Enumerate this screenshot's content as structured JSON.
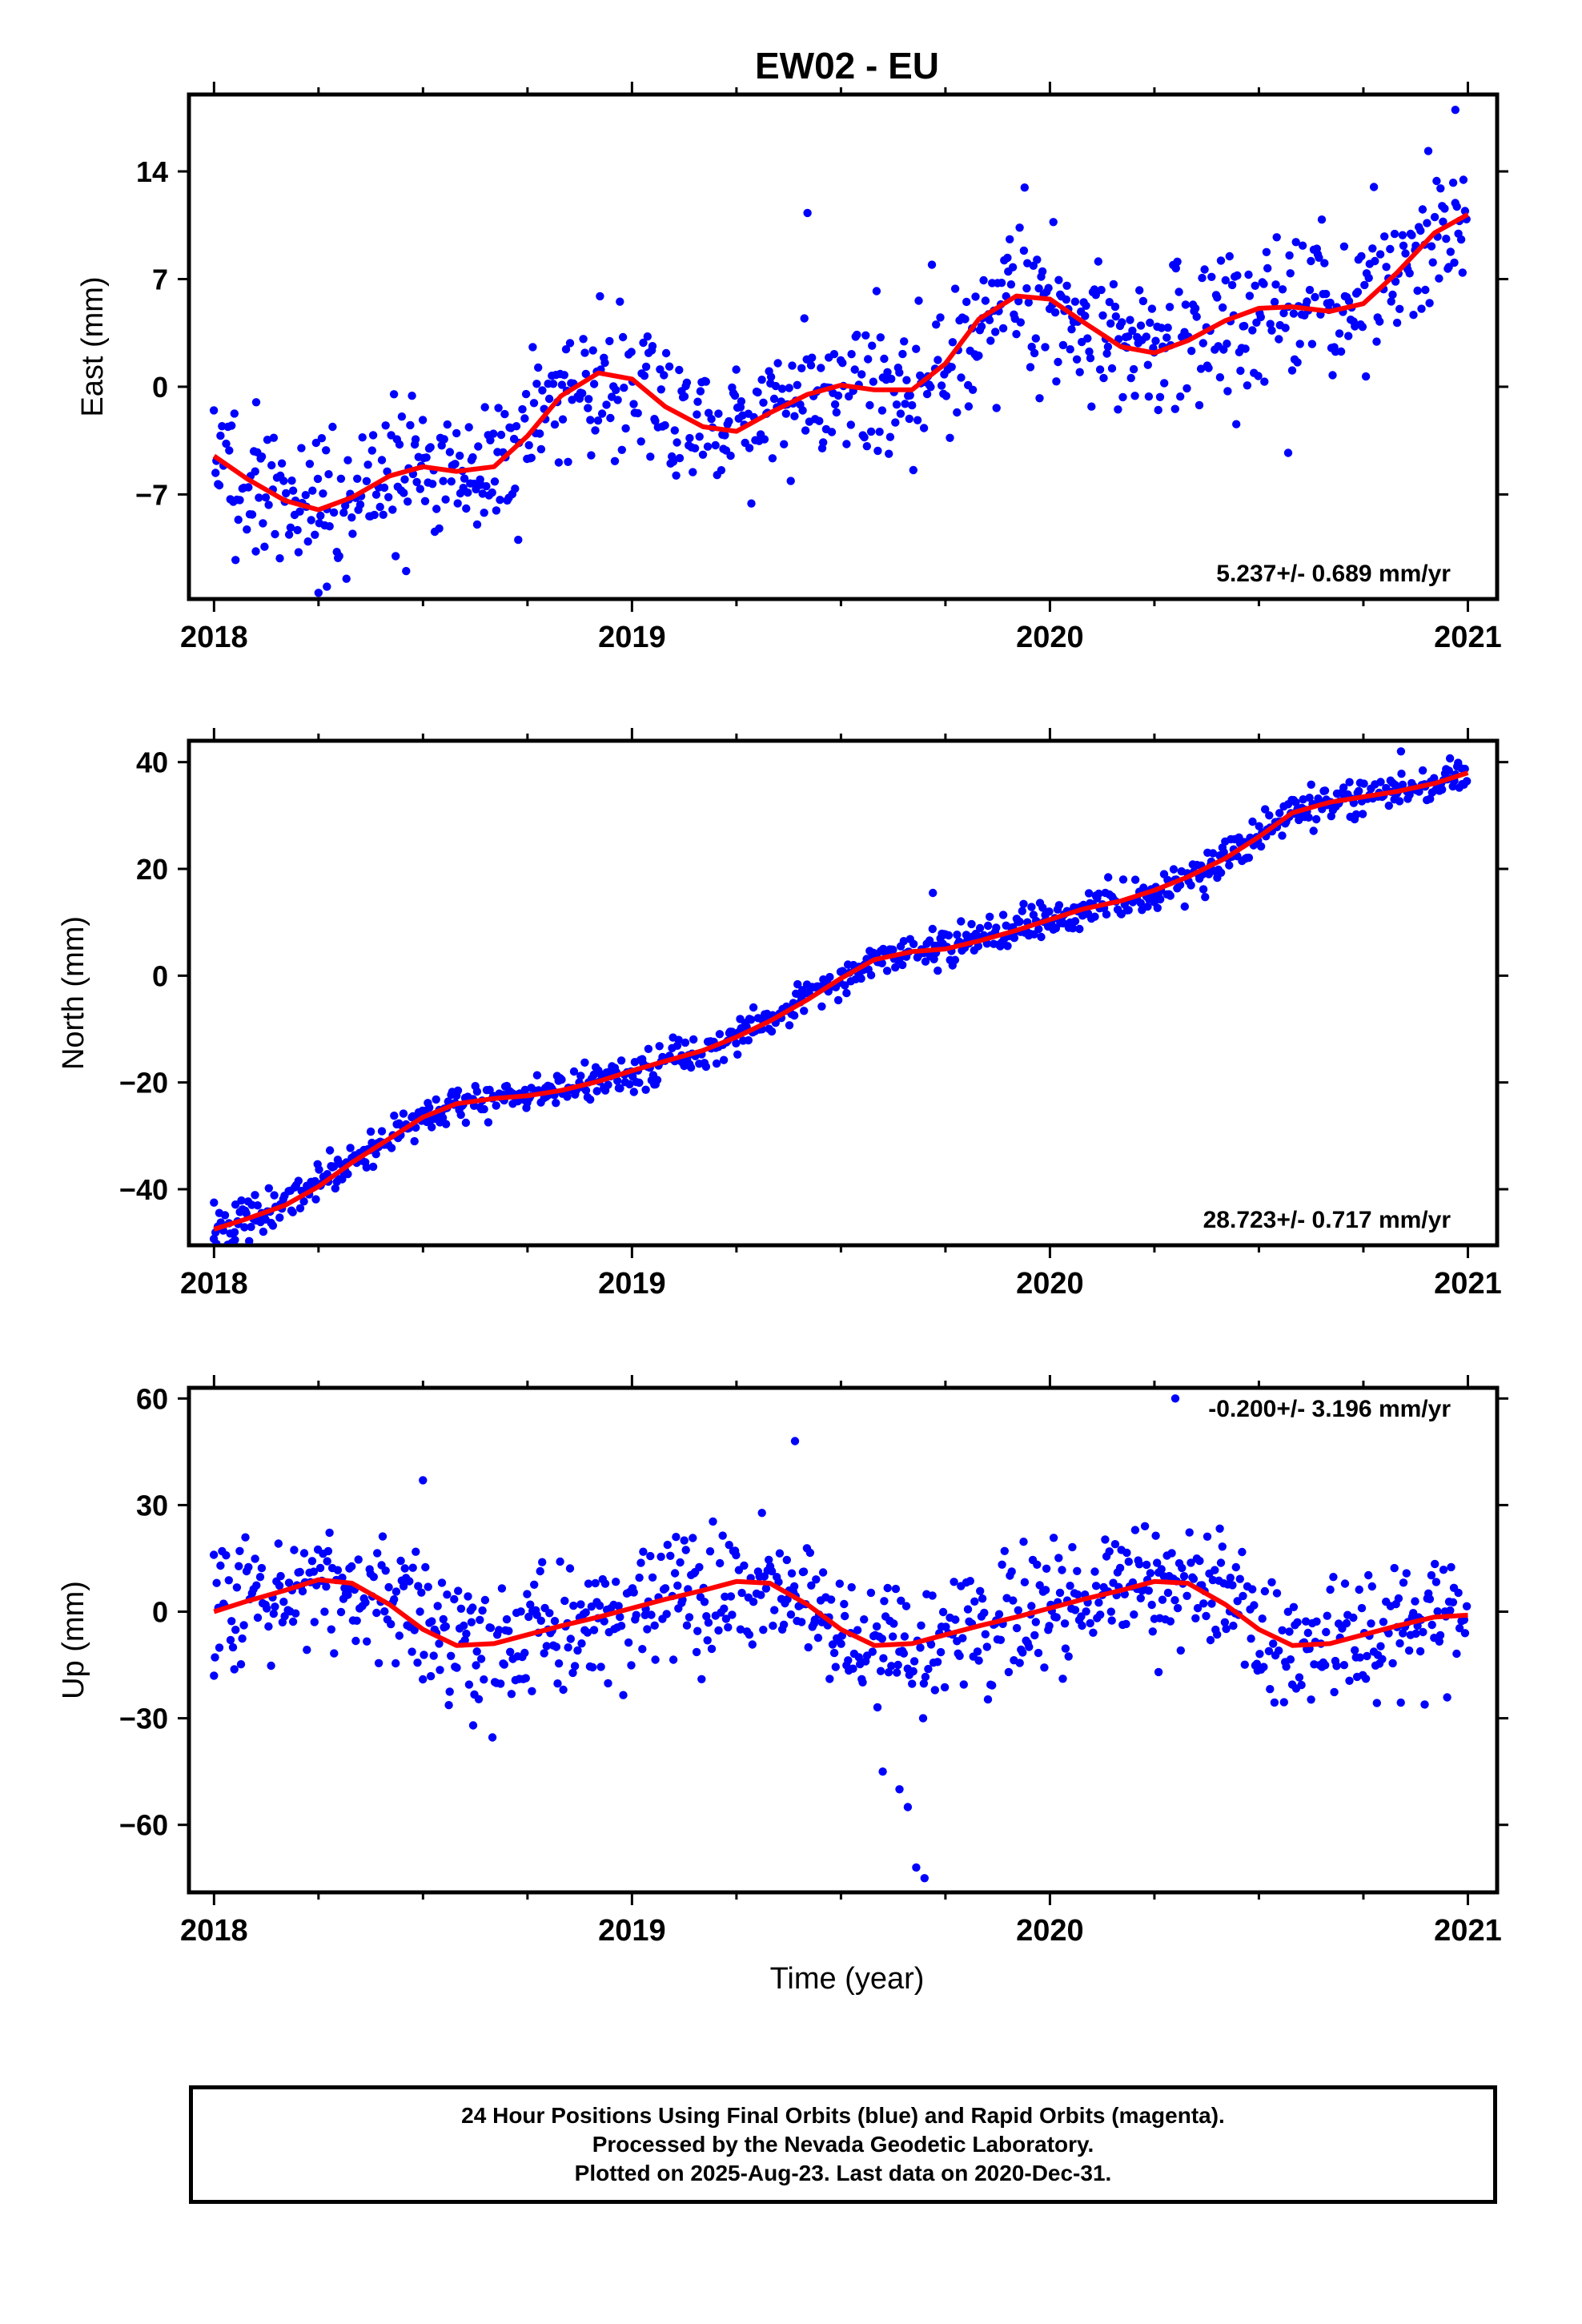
{
  "title": "EW02 - EU",
  "xlabel": "Time (year)",
  "footer": {
    "line1": "24 Hour Positions Using Final Orbits (blue) and Rapid Orbits (magenta).",
    "line2": "Processed by the Nevada Geodetic Laboratory.",
    "line3": "Plotted on 2025-Aug-23. Last data on 2020-Dec-31."
  },
  "colors": {
    "points": "#0000ff",
    "fit": "#ff0000",
    "axes": "#000000"
  },
  "chart_data": [
    {
      "type": "scatter",
      "ylabel": "East (mm)",
      "rate": "5.237+/- 0.689 mm/yr",
      "xlim": [
        2017.94,
        2021.07
      ],
      "ylim": [
        -13.8,
        19.0
      ],
      "yticks": [
        -7,
        0,
        7,
        14
      ],
      "xticks": [
        2018,
        2019,
        2020,
        2021
      ],
      "fit": {
        "x": [
          2018.0,
          2018.08,
          2018.17,
          2018.25,
          2018.33,
          2018.42,
          2018.5,
          2018.58,
          2018.67,
          2018.75,
          2018.83,
          2018.92,
          2019.0,
          2019.08,
          2019.17,
          2019.25,
          2019.33,
          2019.42,
          2019.5,
          2019.58,
          2019.67,
          2019.75,
          2019.83,
          2019.92,
          2020.0,
          2020.08,
          2020.17,
          2020.25,
          2020.33,
          2020.42,
          2020.5,
          2020.58,
          2020.67,
          2020.75,
          2020.83,
          2020.92,
          2021.0
        ],
        "y": [
          -4.5,
          -6.0,
          -7.4,
          -8.0,
          -7.2,
          -5.8,
          -5.2,
          -5.5,
          -5.2,
          -3.2,
          -0.6,
          0.9,
          0.5,
          -1.3,
          -2.6,
          -2.9,
          -1.7,
          -0.5,
          0.1,
          -0.2,
          -0.2,
          1.5,
          4.4,
          5.9,
          5.7,
          4.2,
          2.6,
          2.2,
          3.0,
          4.3,
          5.1,
          5.2,
          4.9,
          5.4,
          7.4,
          10.0,
          11.2
        ]
      },
      "scatter": {
        "seed": 11,
        "n": 920,
        "sd": 2.3,
        "outliers": [
          [
            2019.42,
            11.3
          ],
          [
            2018.25,
            -13.4
          ],
          [
            2018.27,
            -13.0
          ],
          [
            2020.57,
            -4.3
          ],
          [
            2020.97,
            18.0
          ],
          [
            2018.1,
            -10.7
          ]
        ]
      }
    },
    {
      "type": "scatter",
      "ylabel": "North (mm)",
      "rate": "28.723+/- 0.717 mm/yr",
      "xlim": [
        2017.94,
        2021.07
      ],
      "ylim": [
        -50.5,
        44.0
      ],
      "yticks": [
        -40,
        -20,
        0,
        20,
        40
      ],
      "xticks": [
        2018,
        2019,
        2020,
        2021
      ],
      "fit": {
        "x": [
          2018.0,
          2018.08,
          2018.17,
          2018.25,
          2018.33,
          2018.42,
          2018.5,
          2018.58,
          2018.67,
          2018.75,
          2018.83,
          2018.92,
          2019.0,
          2019.08,
          2019.17,
          2019.25,
          2019.33,
          2019.42,
          2019.5,
          2019.58,
          2019.67,
          2019.75,
          2019.83,
          2019.92,
          2020.0,
          2020.08,
          2020.17,
          2020.25,
          2020.33,
          2020.42,
          2020.5,
          2020.58,
          2020.67,
          2020.75,
          2020.83,
          2020.92,
          2021.0
        ],
        "y": [
          -47.5,
          -45.5,
          -43.0,
          -39.5,
          -35.0,
          -30.5,
          -26.5,
          -24.0,
          -23.0,
          -22.5,
          -21.5,
          -19.8,
          -17.8,
          -16.0,
          -14.0,
          -11.5,
          -8.5,
          -4.5,
          -0.5,
          3.0,
          4.5,
          5.0,
          6.5,
          8.5,
          10.5,
          12.5,
          14.0,
          16.0,
          18.5,
          22.0,
          26.0,
          30.5,
          32.5,
          33.5,
          34.5,
          36.0,
          38.0
        ]
      },
      "scatter": {
        "seed": 23,
        "n": 920,
        "sd": 1.7,
        "outliers": [
          [
            2020.84,
            42.0
          ],
          [
            2019.72,
            15.5
          ],
          [
            2018.0,
            -42.5
          ],
          [
            2018.05,
            -49.5
          ]
        ]
      }
    },
    {
      "type": "scatter",
      "ylabel": "Up (mm)",
      "rate": "-0.200+/- 3.196 mm/yr",
      "xlim": [
        2017.94,
        2021.07
      ],
      "ylim": [
        -79.0,
        63.0
      ],
      "yticks": [
        -60,
        -30,
        0,
        30,
        60
      ],
      "xticks": [
        2018,
        2019,
        2020,
        2021
      ],
      "fit": {
        "x": [
          2018.0,
          2018.08,
          2018.17,
          2018.25,
          2018.33,
          2018.42,
          2018.5,
          2018.58,
          2018.67,
          2018.75,
          2018.83,
          2018.92,
          2019.0,
          2019.08,
          2019.17,
          2019.25,
          2019.33,
          2019.42,
          2019.5,
          2019.58,
          2019.67,
          2019.75,
          2019.83,
          2019.92,
          2020.0,
          2020.08,
          2020.17,
          2020.25,
          2020.33,
          2020.42,
          2020.5,
          2020.58,
          2020.67,
          2020.75,
          2020.83,
          2020.92,
          2021.0
        ],
        "y": [
          0.0,
          3.0,
          6.0,
          9.0,
          8.0,
          2.0,
          -5.0,
          -9.5,
          -9.0,
          -6.5,
          -4.0,
          -1.5,
          1.0,
          3.5,
          6.0,
          8.5,
          8.0,
          2.0,
          -5.0,
          -9.5,
          -9.0,
          -6.5,
          -4.0,
          -1.5,
          1.0,
          3.5,
          6.0,
          8.5,
          8.0,
          2.0,
          -5.0,
          -9.5,
          -9.0,
          -6.5,
          -4.0,
          -1.5,
          -1.0
        ]
      },
      "scatter": {
        "seed": 37,
        "n": 920,
        "sd": 8.5,
        "outliers": [
          [
            2019.68,
            -72.0
          ],
          [
            2019.7,
            -75.0
          ],
          [
            2019.66,
            -55.0
          ],
          [
            2020.3,
            60.0
          ],
          [
            2019.39,
            48.0
          ],
          [
            2018.5,
            37.0
          ],
          [
            2018.62,
            -32.0
          ],
          [
            2018.0,
            -18.0
          ],
          [
            2020.26,
            -17.0
          ],
          [
            2019.6,
            -45.0
          ],
          [
            2019.64,
            -50.0
          ]
        ]
      }
    }
  ]
}
